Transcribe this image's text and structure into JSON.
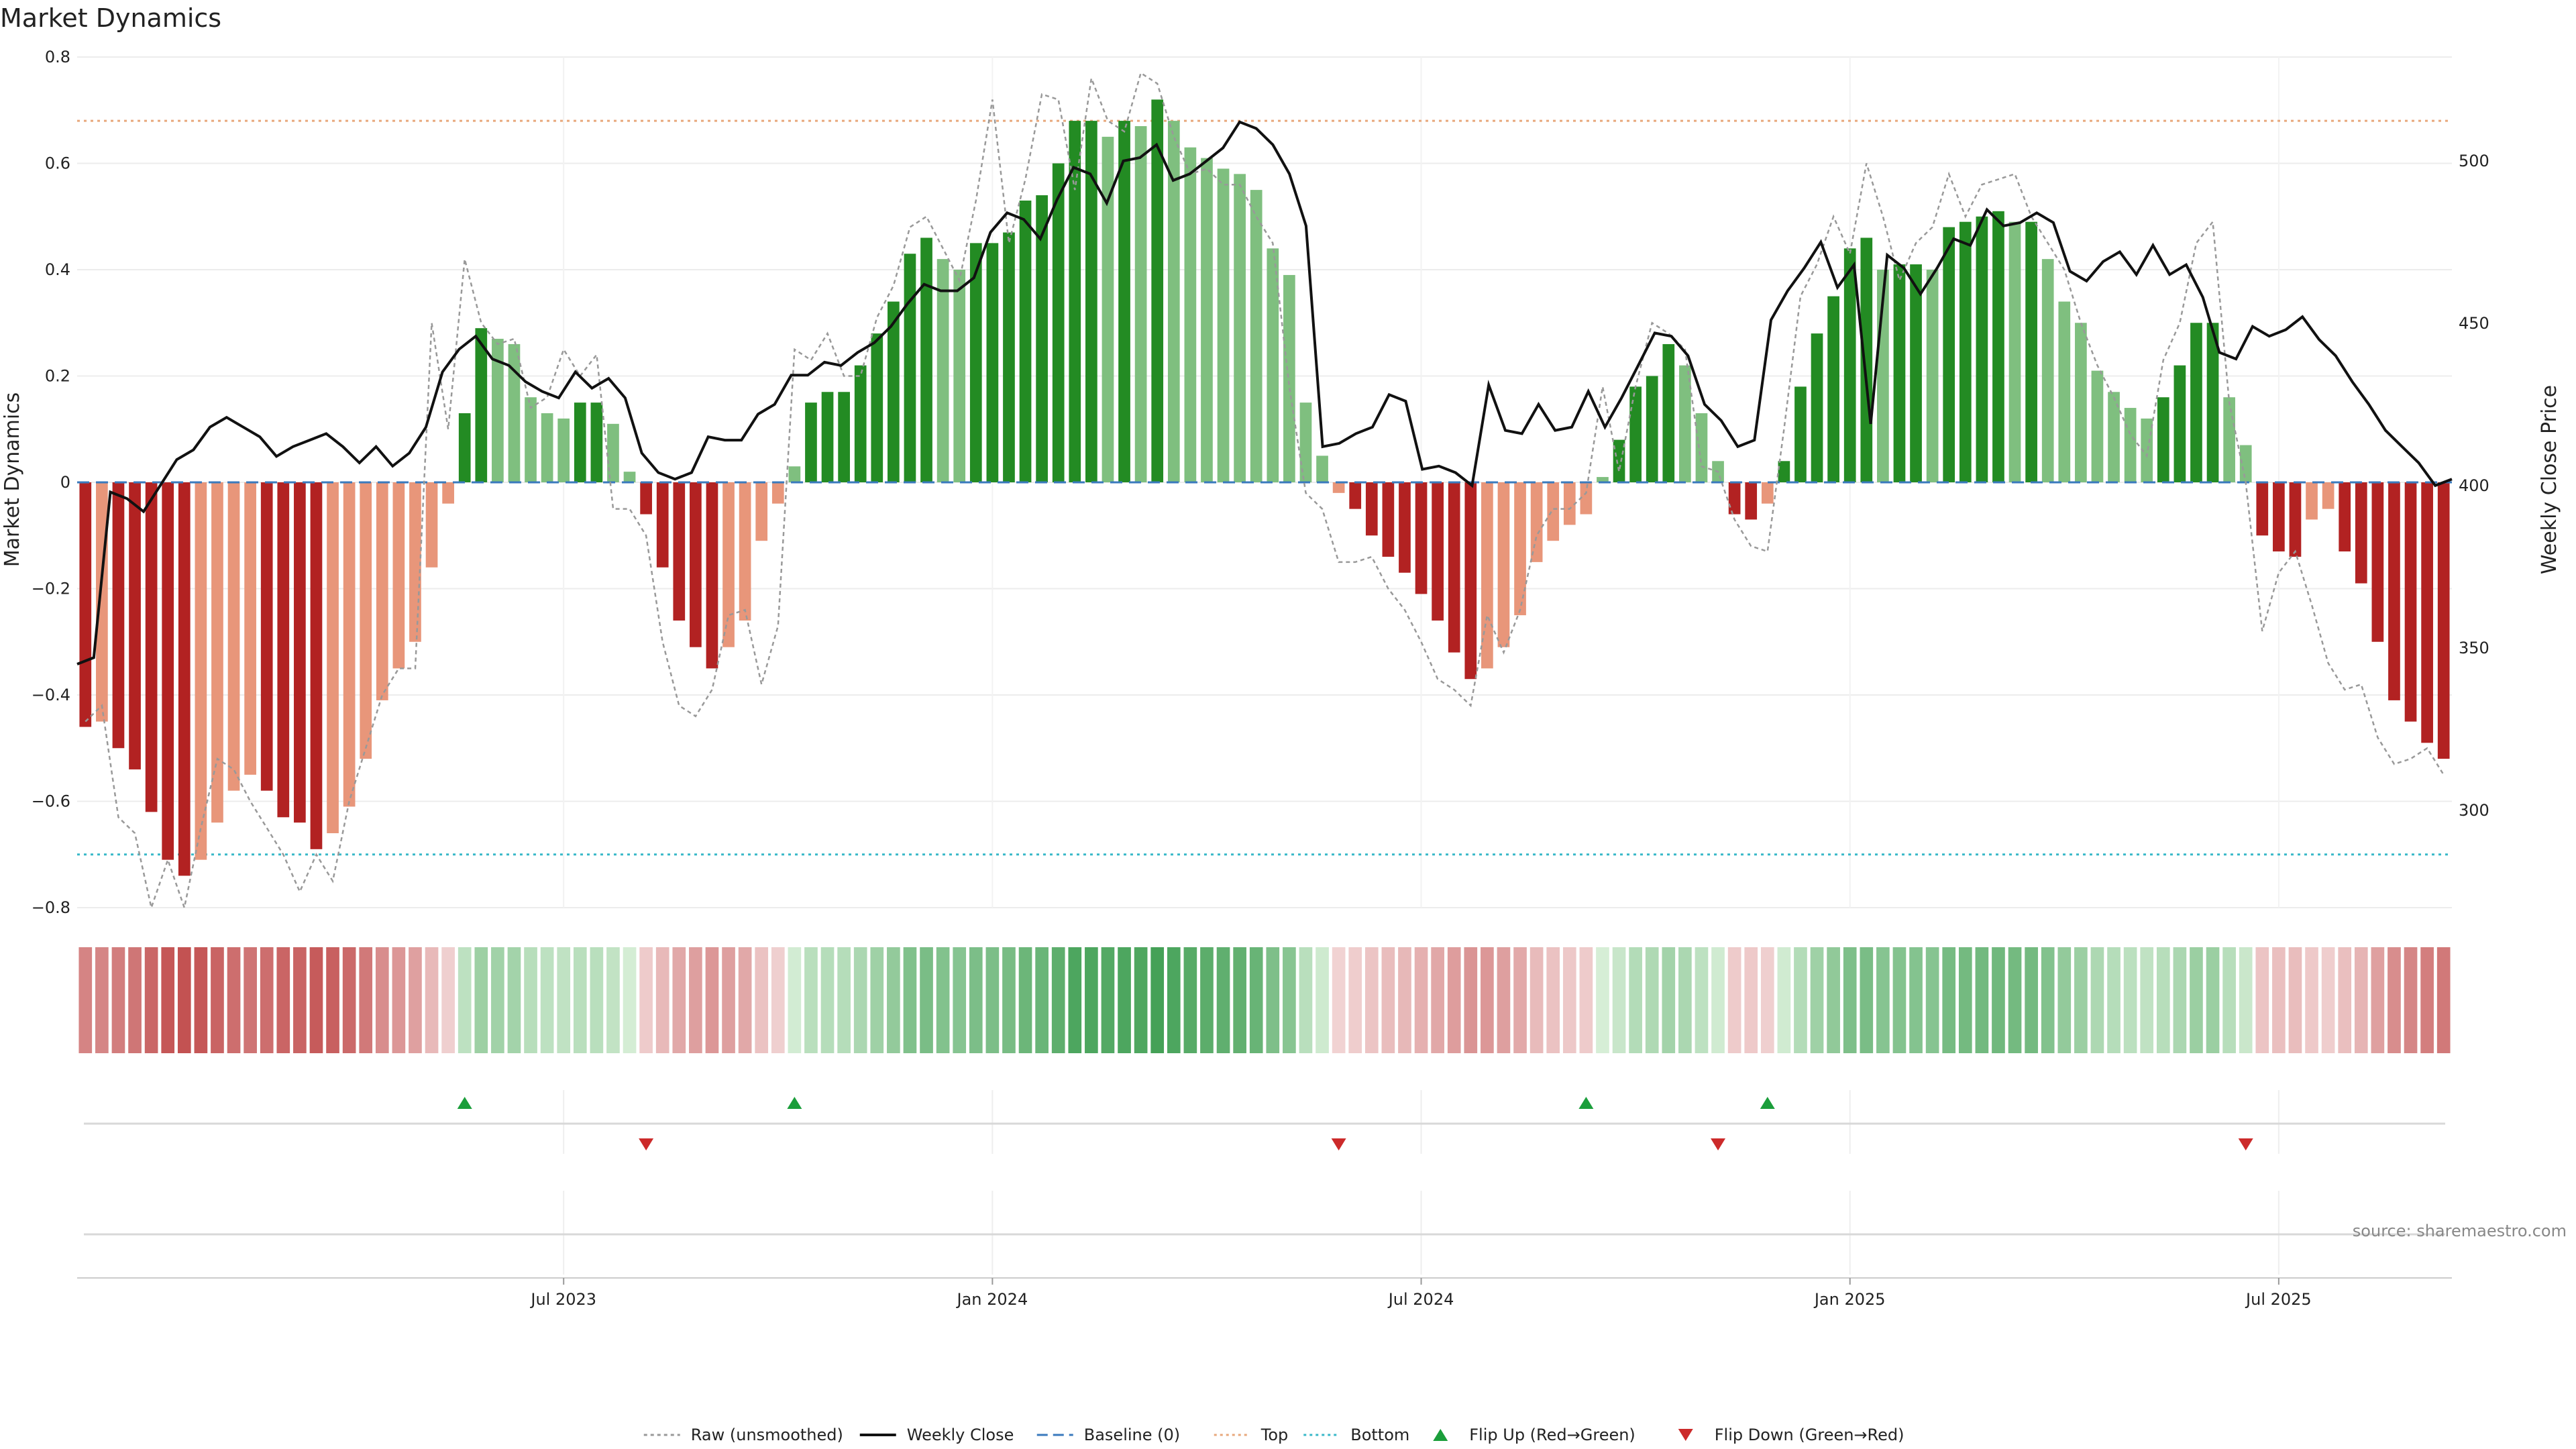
{
  "chart_data": {
    "type": "bar",
    "title": "Market Dynamics",
    "ylabel": "Market Dynamics",
    "y2label": "Weekly Close Price",
    "source": "source: sharemaestro.com",
    "ylim": [
      -0.8,
      0.8
    ],
    "y2lim": [
      270,
      532
    ],
    "yticks": [
      "0.8",
      "0.6",
      "0.4",
      "0.2",
      "0",
      "−0.2",
      "−0.4",
      "−0.6",
      "−0.8"
    ],
    "yticks_values": [
      0.8,
      0.6,
      0.4,
      0.2,
      0,
      -0.2,
      -0.4,
      -0.6,
      -0.8
    ],
    "y2ticks": [
      "500",
      "450",
      "400",
      "350",
      "300"
    ],
    "y2ticks_values": [
      500,
      450,
      400,
      350,
      300
    ],
    "xticks": [
      "Jul 2023",
      "Jan 2024",
      "Jul 2024",
      "Jan 2025",
      "Jul 2025"
    ],
    "xticks_pos": [
      29.5,
      55.5,
      81.5,
      107.5,
      133.5
    ],
    "grid": true,
    "top_line": 0.68,
    "bottom_line": -0.7,
    "bars": [
      -0.46,
      -0.45,
      -0.5,
      -0.54,
      -0.62,
      -0.71,
      -0.74,
      -0.71,
      -0.64,
      -0.58,
      -0.55,
      -0.58,
      -0.63,
      -0.64,
      -0.69,
      -0.66,
      -0.61,
      -0.52,
      -0.41,
      -0.35,
      -0.3,
      -0.16,
      -0.04,
      0.13,
      0.29,
      0.27,
      0.26,
      0.16,
      0.13,
      0.12,
      0.15,
      0.15,
      0.11,
      0.02,
      -0.06,
      -0.16,
      -0.26,
      -0.31,
      -0.35,
      -0.31,
      -0.26,
      -0.11,
      -0.04,
      0.03,
      0.15,
      0.17,
      0.17,
      0.22,
      0.28,
      0.34,
      0.43,
      0.46,
      0.42,
      0.4,
      0.45,
      0.45,
      0.47,
      0.53,
      0.54,
      0.6,
      0.68,
      0.68,
      0.65,
      0.68,
      0.67,
      0.72,
      0.68,
      0.63,
      0.61,
      0.59,
      0.58,
      0.55,
      0.44,
      0.39,
      0.15,
      0.05,
      -0.02,
      -0.05,
      -0.1,
      -0.14,
      -0.17,
      -0.21,
      -0.26,
      -0.32,
      -0.37,
      -0.35,
      -0.31,
      -0.25,
      -0.15,
      -0.11,
      -0.08,
      -0.06,
      0.01,
      0.08,
      0.18,
      0.2,
      0.26,
      0.22,
      0.13,
      0.04,
      -0.06,
      -0.07,
      -0.04,
      0.04,
      0.18,
      0.28,
      0.35,
      0.44,
      0.46,
      0.4,
      0.41,
      0.41,
      0.4,
      0.48,
      0.49,
      0.5,
      0.51,
      0.49,
      0.49,
      0.42,
      0.34,
      0.3,
      0.21,
      0.17,
      0.14,
      0.12,
      0.16,
      0.22,
      0.3,
      0.3,
      0.16,
      0.07,
      -0.1,
      -0.13,
      -0.14,
      -0.07,
      -0.05,
      -0.13,
      -0.19,
      -0.3,
      -0.41,
      -0.45,
      -0.49,
      -0.52
    ],
    "raw": [
      -0.45,
      -0.42,
      -0.63,
      -0.66,
      -0.8,
      -0.71,
      -0.8,
      -0.65,
      -0.52,
      -0.54,
      -0.6,
      -0.65,
      -0.7,
      -0.77,
      -0.7,
      -0.75,
      -0.6,
      -0.5,
      -0.4,
      -0.35,
      -0.35,
      0.3,
      0.1,
      0.42,
      0.3,
      0.26,
      0.27,
      0.14,
      0.16,
      0.25,
      0.2,
      0.24,
      -0.05,
      -0.05,
      -0.1,
      -0.3,
      -0.42,
      -0.44,
      -0.39,
      -0.25,
      -0.24,
      -0.38,
      -0.27,
      0.25,
      0.23,
      0.28,
      0.2,
      0.2,
      0.31,
      0.37,
      0.48,
      0.5,
      0.44,
      0.38,
      0.53,
      0.72,
      0.45,
      0.57,
      0.73,
      0.72,
      0.55,
      0.76,
      0.68,
      0.66,
      0.77,
      0.75,
      0.65,
      0.58,
      0.59,
      0.56,
      0.56,
      0.5,
      0.45,
      0.18,
      -0.02,
      -0.05,
      -0.15,
      -0.15,
      -0.14,
      -0.2,
      -0.24,
      -0.3,
      -0.37,
      -0.39,
      -0.42,
      -0.25,
      -0.32,
      -0.24,
      -0.1,
      -0.05,
      -0.05,
      -0.02,
      0.18,
      0.02,
      0.18,
      0.3,
      0.28,
      0.25,
      0.03,
      0.02,
      -0.07,
      -0.12,
      -0.13,
      0.1,
      0.35,
      0.41,
      0.5,
      0.43,
      0.6,
      0.5,
      0.38,
      0.45,
      0.48,
      0.58,
      0.5,
      0.56,
      0.57,
      0.58,
      0.5,
      0.45,
      0.4,
      0.3,
      0.22,
      0.16,
      0.09,
      0.05,
      0.23,
      0.3,
      0.45,
      0.49,
      0.15,
      0.0,
      -0.28,
      -0.17,
      -0.13,
      -0.23,
      -0.34,
      -0.39,
      -0.38,
      -0.48,
      -0.53,
      -0.52,
      -0.5,
      -0.55
    ],
    "close": [
      345,
      347,
      398,
      396,
      392,
      400,
      408,
      411,
      418,
      421,
      418,
      415,
      409,
      412,
      414,
      416,
      412,
      407,
      412,
      406,
      410,
      418,
      435,
      442,
      446,
      439,
      437,
      432,
      429,
      427,
      435,
      430,
      433,
      427,
      410,
      404,
      402,
      404,
      415,
      414,
      414,
      422,
      425,
      434,
      434,
      438,
      437,
      441,
      444,
      449,
      456,
      462,
      460,
      460,
      464,
      478,
      484,
      482,
      476,
      488,
      498,
      496,
      487,
      500,
      501,
      505,
      494,
      496,
      500,
      504,
      512,
      510,
      505,
      496,
      480,
      412,
      413,
      416,
      418,
      428,
      426,
      405,
      406,
      404,
      400,
      431,
      417,
      416,
      425,
      417,
      418,
      429,
      418,
      427,
      437,
      447,
      446,
      440,
      425,
      420,
      412,
      414,
      451,
      460,
      467,
      475,
      461,
      468,
      419,
      471,
      467,
      459,
      467,
      476,
      474,
      485,
      480,
      481,
      484,
      481,
      466,
      463,
      469,
      472,
      465,
      474,
      465,
      468,
      458,
      441,
      439,
      449,
      446,
      448,
      452,
      445,
      440,
      432,
      425,
      417,
      412,
      407,
      400,
      402
    ]
  },
  "bar_colors": {
    "strong_green": "#238b23",
    "light_green": "#7fbf7f",
    "strong_red": "#b22222",
    "light_red": "#e8967a"
  },
  "legend": [
    {
      "label": "Raw (unsmoothed)",
      "icon": "dotted-grey-line"
    },
    {
      "label": "Weekly Close",
      "icon": "solid-black-line"
    },
    {
      "label": "Baseline (0)",
      "icon": "dashed-blue-line"
    },
    {
      "label": "Top",
      "icon": "dotted-orange-line"
    },
    {
      "label": "Bottom",
      "icon": "dotted-cyan-line"
    },
    {
      "label": "Flip Up (Red→Green)",
      "icon": "green-up-triangle"
    },
    {
      "label": "Flip Down (Green→Red)",
      "icon": "red-down-triangle"
    }
  ],
  "flips_up": [
    23.5,
    43.5,
    91.5,
    102.5
  ],
  "flips_down": [
    34.5,
    76.5,
    99.5,
    131.5
  ],
  "colors": {
    "top_line": "#e8a87c",
    "bottom_line": "#38b8c8",
    "baseline": "#3a7abd",
    "up_marker": "#1b9e3b",
    "down_marker": "#cc2a2a"
  }
}
